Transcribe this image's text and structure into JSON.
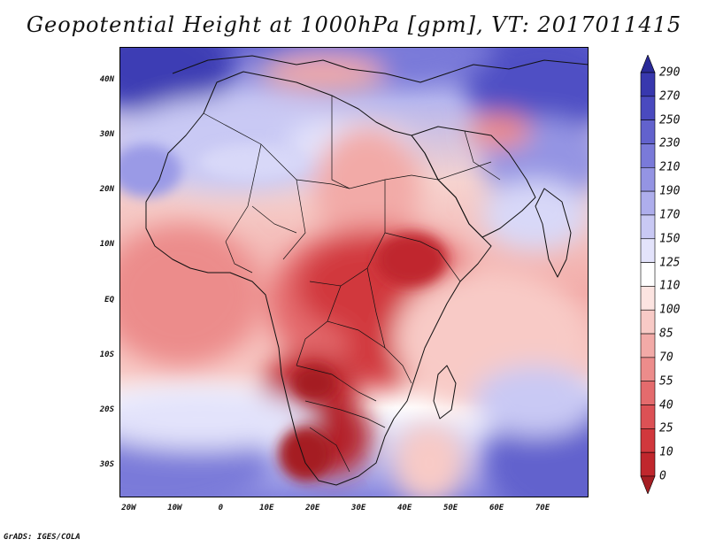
{
  "title": "Geopotential Height at 1000hPa [gpm], VT: 2017011415",
  "credit": "GrADS: IGES/COLA",
  "map": {
    "units": "gpm",
    "level": "1000hPa",
    "valid_time": "2017011415",
    "lat_range": [
      -36,
      46
    ],
    "lon_range": [
      -22,
      80
    ],
    "y_ticks": [
      {
        "lat": 40,
        "label": "40N"
      },
      {
        "lat": 30,
        "label": "30N"
      },
      {
        "lat": 20,
        "label": "20N"
      },
      {
        "lat": 10,
        "label": "10N"
      },
      {
        "lat": 0,
        "label": "EQ"
      },
      {
        "lat": -10,
        "label": "10S"
      },
      {
        "lat": -20,
        "label": "20S"
      },
      {
        "lat": -30,
        "label": "30S"
      }
    ],
    "x_ticks": [
      {
        "lon": -20,
        "label": "20W"
      },
      {
        "lon": -10,
        "label": "10W"
      },
      {
        "lon": 0,
        "label": "0"
      },
      {
        "lon": 10,
        "label": "10E"
      },
      {
        "lon": 20,
        "label": "20E"
      },
      {
        "lon": 30,
        "label": "30E"
      },
      {
        "lon": 40,
        "label": "40E"
      },
      {
        "lon": 50,
        "label": "50E"
      },
      {
        "lon": 60,
        "label": "60E"
      },
      {
        "lon": 70,
        "label": "70E"
      }
    ]
  },
  "colorbar": {
    "levels": [
      "0",
      "10",
      "25",
      "40",
      "55",
      "70",
      "85",
      "100",
      "110",
      "125",
      "150",
      "170",
      "190",
      "210",
      "230",
      "250",
      "270",
      "290"
    ],
    "colors": [
      "#a51e23",
      "#c0272d",
      "#d1383d",
      "#dc5155",
      "#e46b6d",
      "#ec8c8b",
      "#f2aaa7",
      "#f8cac6",
      "#fce4e1",
      "#ffffff",
      "#e3e3fb",
      "#c9c9f4",
      "#aeaeec",
      "#9494e3",
      "#7a7ad9",
      "#6262cd",
      "#4a4abf",
      "#3838ae",
      "#2a2a98"
    ]
  }
}
